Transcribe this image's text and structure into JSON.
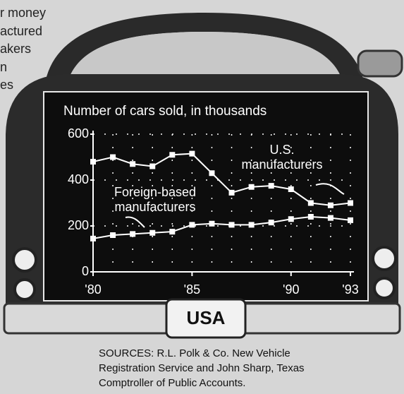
{
  "article_fragment": [
    "r money",
    "actured",
    "akers",
    "n",
    "es"
  ],
  "chart_data": {
    "type": "line",
    "title": "Number of cars sold, in thousands",
    "x": [
      80,
      81,
      82,
      83,
      84,
      85,
      86,
      87,
      88,
      89,
      90,
      91,
      92,
      93
    ],
    "series": [
      {
        "name": "U.S. manufacturers",
        "color": "#ffffff",
        "values": [
          480,
          500,
          470,
          460,
          510,
          515,
          430,
          345,
          370,
          375,
          360,
          300,
          290,
          300
        ]
      },
      {
        "name": "Foreign-based manufacturers",
        "color": "#ffffff",
        "values": [
          145,
          160,
          165,
          170,
          175,
          205,
          210,
          205,
          205,
          215,
          230,
          240,
          235,
          225
        ]
      }
    ],
    "xlim": [
      80,
      93
    ],
    "xticks": [
      {
        "value": 80,
        "label": "'80"
      },
      {
        "value": 85,
        "label": "'85"
      },
      {
        "value": 90,
        "label": "'90"
      },
      {
        "value": 93,
        "label": "'93"
      }
    ],
    "ylim": [
      0,
      600
    ],
    "yticks": [
      0,
      200,
      400,
      600
    ],
    "grid": true,
    "plate": "USA",
    "source": "SOURCES: R.L. Polk & Co. New Vehicle Registration Service and John Sharp, Texas Comptroller of Public Accounts."
  }
}
